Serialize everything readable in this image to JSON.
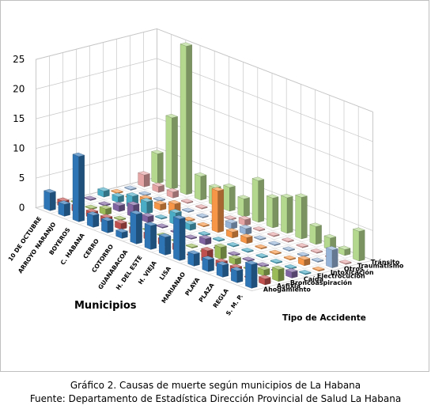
{
  "caption": {
    "line1": "Gráfico 2. Causas de muerte según municipios de La Habana",
    "line2": "Fuente: Departamento de Estadística Dirección Provincial de Salud La Habana"
  },
  "chart_data": {
    "type": "bar",
    "subtype": "3d-column",
    "xlabel": "Municipios",
    "zlabel": "Tipo de Accidente",
    "ylabel": "",
    "ylim": [
      0,
      25
    ],
    "yticks": [
      0,
      5,
      10,
      15,
      20,
      25
    ],
    "grid": true,
    "categories": [
      "10 DE OCTUBRE",
      "ARROYO NARANJO",
      "BOYEROS",
      "C. HABANA",
      "CERRO",
      "COTORRO",
      "GUANABACOA",
      "H. DEL ESTE",
      "H. VIEJA",
      "LISA",
      "MARIANAO",
      "PLAYA",
      "PLAZA",
      "REGLA",
      "S. M. P."
    ],
    "series": [
      {
        "name": "Ahogamiento",
        "color": "#2e75b6",
        "values": [
          3,
          2,
          11,
          2,
          2,
          1,
          5,
          4,
          3,
          7,
          2,
          2,
          2,
          2,
          4
        ]
      },
      {
        "name": "Asfixia",
        "color": "#c0504d",
        "values": [
          1,
          1,
          1,
          1,
          1,
          1,
          1,
          1,
          1,
          0,
          2,
          1,
          1,
          0,
          1
        ]
      },
      {
        "name": "Broncoaspiración",
        "color": "#9bbb59",
        "values": [
          0,
          0,
          1,
          0,
          0,
          0,
          0,
          0,
          0,
          0,
          2,
          1,
          0,
          1,
          2
        ]
      },
      {
        "name": "Caída",
        "color": "#8064a2",
        "values": [
          0,
          0,
          1,
          2,
          1,
          0,
          0,
          0,
          1,
          0,
          0,
          0,
          0,
          0,
          1
        ]
      },
      {
        "name": "Electrocución",
        "color": "#4bacc6",
        "values": [
          1,
          1,
          2,
          2,
          0,
          2,
          1,
          0,
          0,
          0,
          0,
          0,
          0,
          0,
          0
        ]
      },
      {
        "name": "Intoxicación",
        "color": "#f79646",
        "values": [
          0,
          0,
          1,
          1,
          2,
          0,
          0,
          7,
          1,
          1,
          0,
          0,
          0,
          1,
          0
        ]
      },
      {
        "name": "Otros",
        "color": "#95b3d7",
        "values": [
          0,
          0,
          0,
          0,
          0,
          0,
          0,
          1,
          1,
          0,
          0,
          0,
          0,
          0,
          3
        ]
      },
      {
        "name": "Traumatismo",
        "color": "#e6a5a5",
        "values": [
          2,
          1,
          1,
          0,
          0,
          0,
          0,
          1,
          0,
          0,
          0,
          0,
          0,
          0,
          0
        ]
      },
      {
        "name": "Tránsito",
        "color": "#b3d88e",
        "values": [
          5,
          12,
          25,
          4,
          3,
          4,
          3,
          7,
          5,
          6,
          7,
          3,
          2,
          1,
          5
        ]
      }
    ]
  }
}
